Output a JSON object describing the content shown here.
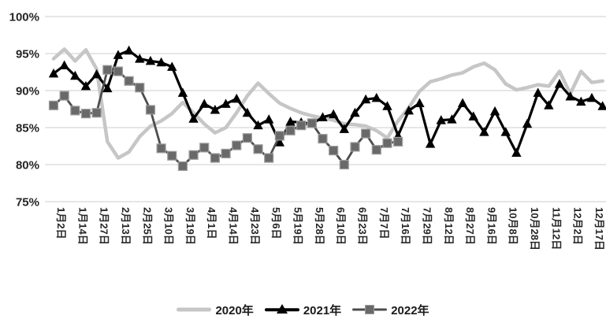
{
  "chart_data": {
    "type": "line",
    "title": "",
    "xlabel": "",
    "ylabel": "",
    "ylim": [
      75,
      100
    ],
    "y_tick_labels": [
      "100%",
      "95%",
      "90%",
      "85%",
      "80%",
      "75%"
    ],
    "y_tick_values": [
      100,
      95,
      90,
      85,
      80,
      75
    ],
    "grid": "horizontal-only",
    "grid_color": "#d6d6d6",
    "text_color": "#262626",
    "background_color": "#ffffff",
    "legend_position": "bottom",
    "categories": [
      "1月2日",
      "1月14日",
      "1月27日",
      "2月13日",
      "2月25日",
      "3月10日",
      "3月19日",
      "4月1日",
      "4月14日",
      "4月23日",
      "5月6日",
      "5月19日",
      "5月28日",
      "6月10日",
      "6月23日",
      "7月7日",
      "7月16日",
      "7月29日",
      "8月12日",
      "8月27日",
      "9月16日",
      "10月8日",
      "10月28日",
      "11月12日",
      "12月2日",
      "12月17日"
    ],
    "points_per_category": 2,
    "series": [
      {
        "name": "2020年",
        "color": "#c6c6c6",
        "marker": "none",
        "line_width": 4.5,
        "values": [
          94.3,
          95.6,
          94.0,
          95.5,
          92.9,
          83.1,
          80.9,
          81.7,
          83.8,
          85.2,
          85.9,
          86.9,
          88.4,
          87.0,
          85.5,
          84.3,
          85.0,
          87.0,
          89.3,
          91.0,
          89.6,
          88.3,
          87.6,
          87.0,
          86.6,
          86.3,
          86.0,
          85.5,
          85.4,
          85.2,
          84.6,
          83.6,
          85.9,
          87.7,
          89.9,
          91.2,
          91.6,
          92.1,
          92.4,
          93.2,
          93.7,
          92.8,
          90.9,
          90.1,
          90.4,
          90.8,
          90.6,
          92.6,
          89.6,
          92.6,
          91.1,
          91.3
        ]
      },
      {
        "name": "2021年",
        "color": "#000000",
        "marker": "triangle",
        "marker_fill": "#000000",
        "line_width": 3.2,
        "values": [
          92.3,
          93.4,
          92.0,
          90.6,
          92.2,
          90.3,
          94.8,
          95.4,
          94.3,
          94.0,
          93.8,
          93.2,
          89.7,
          86.2,
          88.2,
          87.4,
          88.2,
          88.9,
          87.0,
          85.3,
          86.1,
          83.0,
          85.8,
          85.7,
          85.5,
          86.4,
          86.8,
          84.8,
          87.0,
          88.8,
          89.0,
          87.9,
          83.9,
          87.3,
          88.3,
          82.8,
          86.0,
          86.1,
          88.3,
          86.5,
          84.4,
          87.2,
          84.4,
          81.6,
          85.5,
          89.7,
          88.0,
          90.9,
          89.2,
          88.5,
          89.0,
          87.9
        ]
      },
      {
        "name": "2022年",
        "color": "#4d4d4d",
        "marker": "square",
        "marker_fill": "#696969",
        "marker_edge": "#9e9e9e",
        "line_width": 2.8,
        "values": [
          88.0,
          89.3,
          87.3,
          86.9,
          87.0,
          92.8,
          92.6,
          91.3,
          90.4,
          87.4,
          82.2,
          81.2,
          79.8,
          81.3,
          82.3,
          80.9,
          81.5,
          82.6,
          83.6,
          82.1,
          80.9,
          83.9,
          84.6,
          85.3,
          85.6,
          83.5,
          81.9,
          80.0,
          82.4,
          84.2,
          82.0,
          82.9,
          83.1
        ]
      }
    ]
  }
}
